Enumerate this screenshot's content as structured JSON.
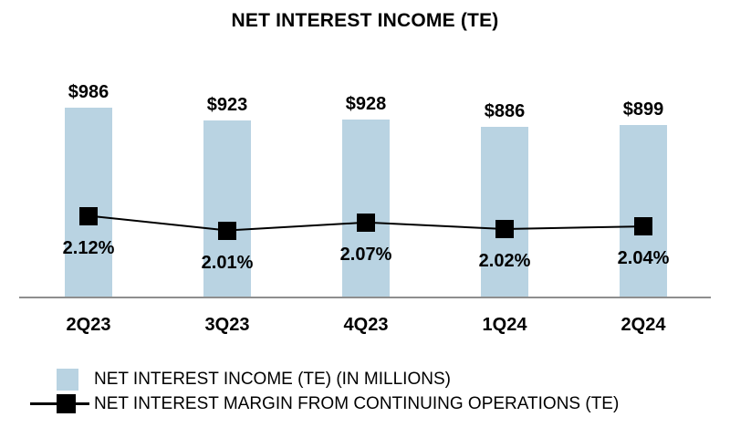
{
  "chart_data": {
    "type": "bar",
    "title": "NET INTEREST INCOME (TE)",
    "categories": [
      "2Q23",
      "3Q23",
      "4Q23",
      "1Q24",
      "2Q24"
    ],
    "series": [
      {
        "name": "NET INTEREST INCOME (TE) (IN MILLIONS)",
        "type": "bar",
        "values": [
          986,
          923,
          928,
          886,
          899
        ],
        "data_labels": [
          "$986",
          "$923",
          "$928",
          "$886",
          "$899"
        ],
        "color": "#b9d3e2"
      },
      {
        "name": "NET INTEREST MARGIN FROM CONTINUING OPERATIONS (TE)",
        "type": "line",
        "values": [
          2.12,
          2.01,
          2.07,
          2.02,
          2.04
        ],
        "data_labels": [
          "2.12%",
          "2.01%",
          "2.07%",
          "2.02%",
          "2.04%"
        ],
        "color": "#000000",
        "marker": "square"
      }
    ],
    "axis": {
      "y_axis_visible": false,
      "gridlines": false,
      "baseline_visible": true
    },
    "legend_position": "bottom-left"
  },
  "legend": {
    "items": [
      {
        "label": "NET INTEREST INCOME (TE) (IN MILLIONS)"
      },
      {
        "label": "NET INTEREST MARGIN FROM CONTINUING OPERATIONS (TE)"
      }
    ]
  },
  "colors": {
    "bar_fill": "#b9d3e2",
    "axis_line": "#8e8e8e",
    "line": "#000000",
    "text": "#000000",
    "background": "#ffffff"
  }
}
